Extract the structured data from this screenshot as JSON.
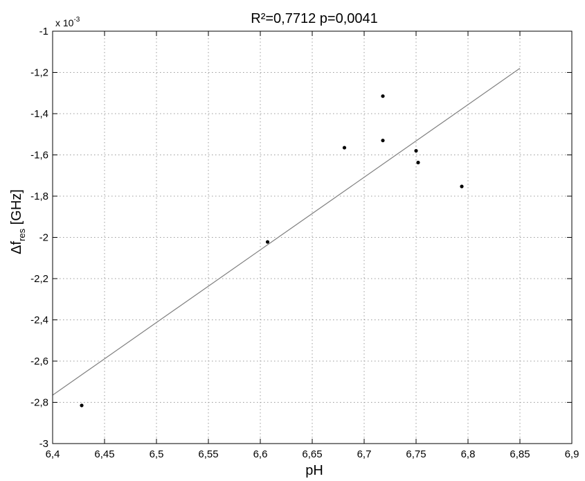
{
  "chart_data": {
    "type": "scatter",
    "title": "R²=0,7712  p=0,0041",
    "xlabel": "pH",
    "ylabel_main": "Δf",
    "ylabel_sub": "res",
    "ylabel_unit": " [GHz]",
    "y_multiplier": "x 10",
    "y_multiplier_exp": "-3",
    "xlim": [
      6.4,
      6.9
    ],
    "ylim": [
      -3,
      -1
    ],
    "x_ticks": [
      6.4,
      6.45,
      6.5,
      6.55,
      6.6,
      6.65,
      6.7,
      6.75,
      6.8,
      6.85,
      6.9
    ],
    "x_tick_labels": [
      "6,4",
      "6,45",
      "6,5",
      "6,55",
      "6,6",
      "6,65",
      "6,7",
      "6,75",
      "6,8",
      "6,85",
      "6,9"
    ],
    "y_ticks": [
      -3,
      -2.8,
      -2.6,
      -2.4,
      -2.2,
      -2,
      -1.8,
      -1.6,
      -1.4,
      -1.2,
      -1
    ],
    "y_tick_labels": [
      "-3",
      "-2,8",
      "-2,6",
      "-2,4",
      "-2,2",
      "-2",
      "-1,8",
      "-1,6",
      "-1,4",
      "-1,2",
      "-1"
    ],
    "grid": true,
    "points": [
      {
        "x": 6.428,
        "y": -2.815
      },
      {
        "x": 6.607,
        "y": -2.022
      },
      {
        "x": 6.681,
        "y": -1.565
      },
      {
        "x": 6.718,
        "y": -1.315
      },
      {
        "x": 6.718,
        "y": -1.53
      },
      {
        "x": 6.75,
        "y": -1.58
      },
      {
        "x": 6.752,
        "y": -1.637
      },
      {
        "x": 6.794,
        "y": -1.753
      }
    ],
    "fit_line": {
      "x": [
        6.4,
        6.85
      ],
      "y": [
        -2.765,
        -1.18
      ]
    },
    "colors": {
      "points": "#000000",
      "fit_line": "#808080",
      "grid": "#9a9a9a",
      "axes": "#000000"
    }
  }
}
